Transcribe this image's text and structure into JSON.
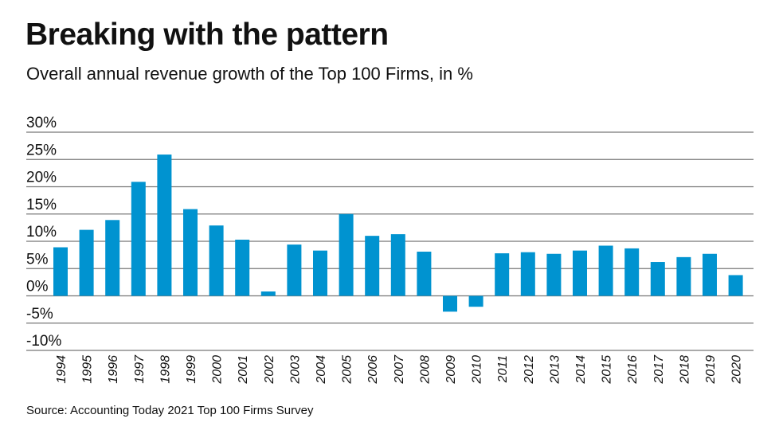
{
  "title": "Breaking with the pattern",
  "subtitle": "Overall annual revenue growth of the Top 100 Firms, in %",
  "source": "Source: Accounting Today 2021 Top 100 Firms Survey",
  "chart_data": {
    "type": "bar",
    "title": "Breaking with the pattern",
    "subtitle": "Overall annual revenue growth of the Top 100 Firms, in %",
    "xlabel": "",
    "ylabel": "",
    "ylim": [
      -10,
      30
    ],
    "yticks": [
      30,
      25,
      20,
      15,
      10,
      5,
      0,
      -5,
      -10
    ],
    "ytick_labels": [
      "30%",
      "25%",
      "20%",
      "15%",
      "10%",
      "5%",
      "0%",
      "-5%",
      "-10%"
    ],
    "grid": true,
    "bar_color": "#0093d0",
    "categories": [
      "1994",
      "1995",
      "1996",
      "1997",
      "1998",
      "1999",
      "2000",
      "2001",
      "2002",
      "2003",
      "2004",
      "2005",
      "2006",
      "2007",
      "2008",
      "2009",
      "2010",
      "2011",
      "2012",
      "2013",
      "2014",
      "2015",
      "2016",
      "2017",
      "2018",
      "2019",
      "2020"
    ],
    "values": [
      8.9,
      12.1,
      13.9,
      20.9,
      25.9,
      15.9,
      12.9,
      10.3,
      0.8,
      9.4,
      8.3,
      15.0,
      11.0,
      11.3,
      8.1,
      -2.9,
      -2.0,
      7.8,
      8.0,
      7.7,
      8.3,
      9.2,
      8.7,
      6.2,
      7.1,
      7.7,
      3.8
    ]
  }
}
